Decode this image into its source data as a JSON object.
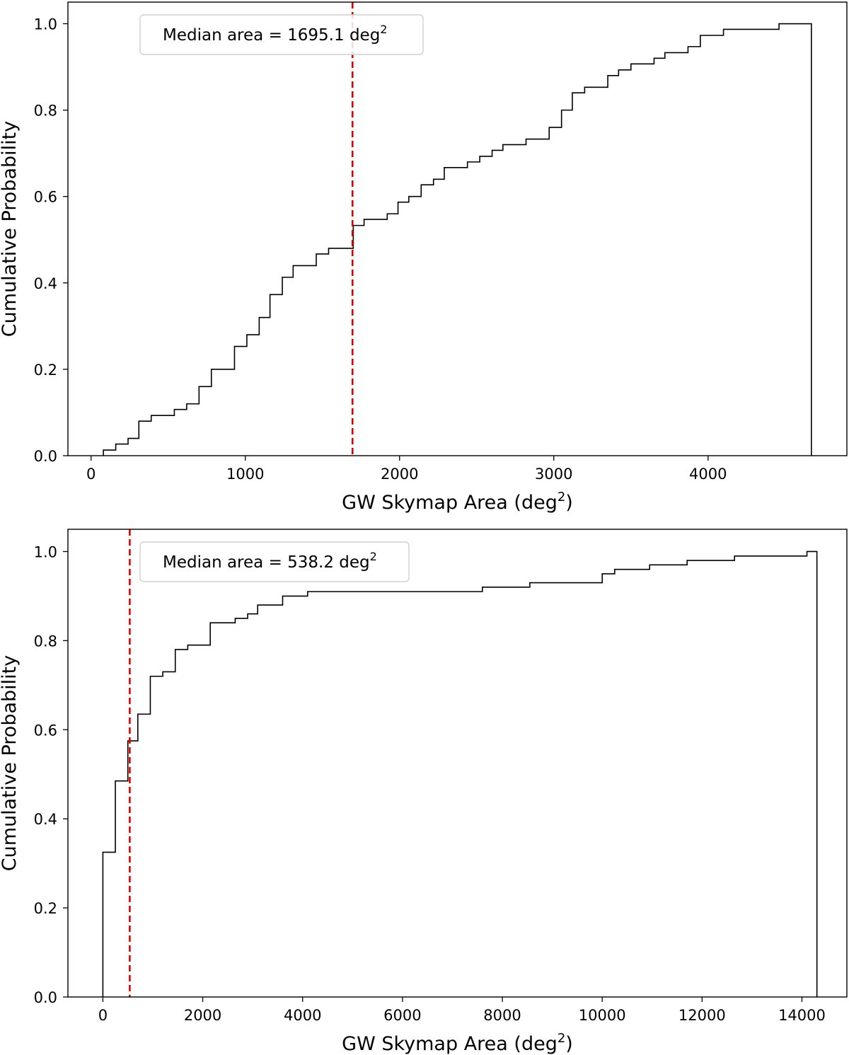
{
  "chart_data": [
    {
      "type": "step",
      "title": "",
      "xlabel": "GW Skymap Area (deg",
      "xlabel_sup": "2",
      "xlabel_end": ")",
      "ylabel": "Cumulative Probability",
      "xlim": [
        -150,
        4900
      ],
      "ylim": [
        0.0,
        1.05
      ],
      "xticks": [
        0,
        1000,
        2000,
        3000,
        4000
      ],
      "yticks": [
        0.0,
        0.2,
        0.4,
        0.6,
        0.8,
        1.0
      ],
      "ytick_labels": [
        "0.0",
        "0.2",
        "0.4",
        "0.6",
        "0.8",
        "1.0"
      ],
      "grid": false,
      "legend_position": "top-left",
      "line_color": "#000000",
      "median_color": "#e00000",
      "median_value": 1695.1,
      "legend_label": "Median area = 1695.1 deg",
      "legend_sup": "2",
      "steps": [
        [
          80,
          0.013
        ],
        [
          160,
          0.027
        ],
        [
          240,
          0.04
        ],
        [
          310,
          0.08
        ],
        [
          390,
          0.093
        ],
        [
          540,
          0.107
        ],
        [
          620,
          0.12
        ],
        [
          700,
          0.16
        ],
        [
          780,
          0.2
        ],
        [
          930,
          0.253
        ],
        [
          1010,
          0.28
        ],
        [
          1090,
          0.32
        ],
        [
          1160,
          0.373
        ],
        [
          1240,
          0.413
        ],
        [
          1310,
          0.44
        ],
        [
          1460,
          0.467
        ],
        [
          1540,
          0.48
        ],
        [
          1700,
          0.533
        ],
        [
          1770,
          0.547
        ],
        [
          1920,
          0.56
        ],
        [
          1990,
          0.587
        ],
        [
          2060,
          0.6
        ],
        [
          2140,
          0.627
        ],
        [
          2220,
          0.64
        ],
        [
          2290,
          0.667
        ],
        [
          2440,
          0.68
        ],
        [
          2520,
          0.693
        ],
        [
          2600,
          0.707
        ],
        [
          2670,
          0.72
        ],
        [
          2820,
          0.733
        ],
        [
          2970,
          0.76
        ],
        [
          3050,
          0.8
        ],
        [
          3120,
          0.84
        ],
        [
          3200,
          0.853
        ],
        [
          3350,
          0.88
        ],
        [
          3420,
          0.893
        ],
        [
          3500,
          0.907
        ],
        [
          3650,
          0.92
        ],
        [
          3720,
          0.933
        ],
        [
          3870,
          0.947
        ],
        [
          3950,
          0.973
        ],
        [
          4100,
          0.987
        ],
        [
          4460,
          1.0
        ]
      ],
      "x_end": 4670
    },
    {
      "type": "step",
      "title": "",
      "xlabel": "GW Skymap Area (deg",
      "xlabel_sup": "2",
      "xlabel_end": ")",
      "ylabel": "Cumulative Probability",
      "xlim": [
        -700,
        14900
      ],
      "ylim": [
        0.0,
        1.05
      ],
      "xticks": [
        0,
        2000,
        4000,
        6000,
        8000,
        10000,
        12000,
        14000
      ],
      "yticks": [
        0.0,
        0.2,
        0.4,
        0.6,
        0.8,
        1.0
      ],
      "ytick_labels": [
        "0.0",
        "0.2",
        "0.4",
        "0.6",
        "0.8",
        "1.0"
      ],
      "grid": false,
      "legend_position": "top-left",
      "line_color": "#000000",
      "median_color": "#e00000",
      "median_value": 538.2,
      "legend_label": "Median area = 538.2 deg",
      "legend_sup": "2",
      "steps": [
        [
          0,
          0.325
        ],
        [
          250,
          0.485
        ],
        [
          500,
          0.575
        ],
        [
          700,
          0.635
        ],
        [
          950,
          0.72
        ],
        [
          1200,
          0.73
        ],
        [
          1450,
          0.78
        ],
        [
          1700,
          0.79
        ],
        [
          2150,
          0.84
        ],
        [
          2650,
          0.85
        ],
        [
          2900,
          0.86
        ],
        [
          3100,
          0.88
        ],
        [
          3600,
          0.9
        ],
        [
          4100,
          0.91
        ],
        [
          7600,
          0.92
        ],
        [
          8550,
          0.93
        ],
        [
          10000,
          0.95
        ],
        [
          10250,
          0.96
        ],
        [
          10950,
          0.97
        ],
        [
          11700,
          0.98
        ],
        [
          12650,
          0.99
        ],
        [
          14100,
          1.0
        ]
      ],
      "x_end": 14300
    }
  ]
}
